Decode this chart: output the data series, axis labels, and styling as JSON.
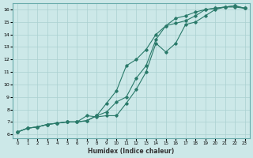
{
  "xlabel": "Humidex (Indice chaleur)",
  "ylabel": "",
  "bg_color": "#cce8e8",
  "grid_color": "#aad0d0",
  "line_color": "#2a7a6a",
  "xlim_min": -0.5,
  "xlim_max": 23.5,
  "ylim_min": 5.7,
  "ylim_max": 16.5,
  "xticks": [
    0,
    1,
    2,
    3,
    4,
    5,
    6,
    7,
    8,
    9,
    10,
    11,
    12,
    13,
    14,
    15,
    16,
    17,
    18,
    19,
    20,
    21,
    22,
    23
  ],
  "yticks": [
    6,
    7,
    8,
    9,
    10,
    11,
    12,
    13,
    14,
    15,
    16
  ],
  "line1_x": [
    0,
    1,
    2,
    3,
    4,
    5,
    6,
    7,
    8,
    9,
    10,
    11,
    12,
    13,
    14,
    15,
    16,
    17,
    18,
    19,
    20,
    21,
    22,
    23
  ],
  "line1_y": [
    6.2,
    6.5,
    6.6,
    6.8,
    6.9,
    7.0,
    7.0,
    7.1,
    7.5,
    7.8,
    8.6,
    9.0,
    10.5,
    11.5,
    13.6,
    14.7,
    14.9,
    15.1,
    15.5,
    16.0,
    16.1,
    16.2,
    16.2,
    16.1
  ],
  "line2_x": [
    0,
    1,
    2,
    3,
    4,
    5,
    6,
    7,
    8,
    9,
    10,
    11,
    12,
    13,
    14,
    15,
    16,
    17,
    18,
    19,
    20,
    21,
    22,
    23
  ],
  "line2_y": [
    6.2,
    6.5,
    6.6,
    6.8,
    6.9,
    7.0,
    7.0,
    7.5,
    7.4,
    7.5,
    7.5,
    8.5,
    9.6,
    11.0,
    13.3,
    12.6,
    13.3,
    14.8,
    15.0,
    15.5,
    16.0,
    16.2,
    16.3,
    16.1
  ],
  "line3_x": [
    0,
    1,
    2,
    3,
    4,
    5,
    6,
    7,
    8,
    9,
    10,
    11,
    12,
    13,
    14,
    15,
    16,
    17,
    18,
    19,
    20,
    21,
    22,
    23
  ],
  "line3_y": [
    6.2,
    6.5,
    6.6,
    6.8,
    6.9,
    7.0,
    7.0,
    7.1,
    7.5,
    8.5,
    9.5,
    11.5,
    12.0,
    12.8,
    14.0,
    14.7,
    15.3,
    15.5,
    15.8,
    16.0,
    16.1,
    16.2,
    16.3,
    16.1
  ]
}
